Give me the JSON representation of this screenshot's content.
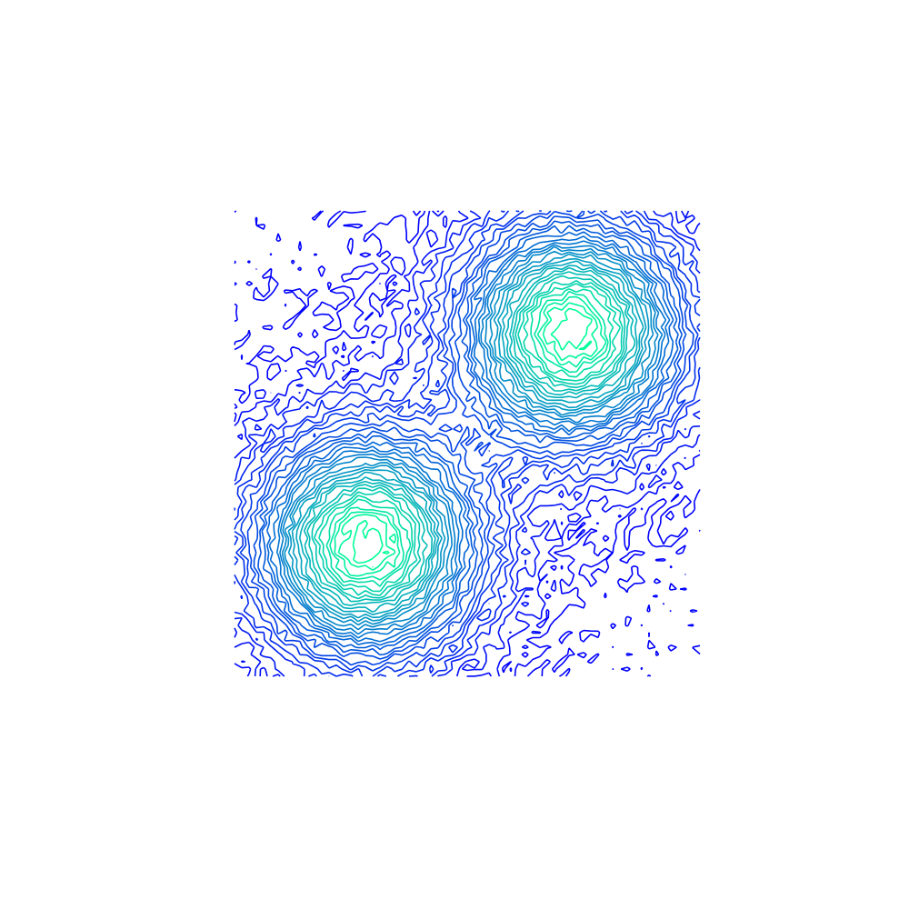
{
  "chart_data": {
    "type": "contour",
    "title": "",
    "xlabel": "",
    "ylabel": "",
    "axes_visible": false,
    "grid": false,
    "xlim": [
      0,
      1
    ],
    "ylim": [
      0,
      1
    ],
    "peaks": [
      {
        "x": 0.725,
        "y": 0.74,
        "sigma": 0.155,
        "amplitude": 1.0
      },
      {
        "x": 0.285,
        "y": 0.285,
        "sigma": 0.155,
        "amplitude": 1.0
      }
    ],
    "noise_level": 0.03,
    "grid_resolution": 64,
    "level_count": 32,
    "level_min": 0.02,
    "level_max": 0.97,
    "colormap": {
      "low": "#0000ff",
      "high": "#00ff99"
    }
  }
}
